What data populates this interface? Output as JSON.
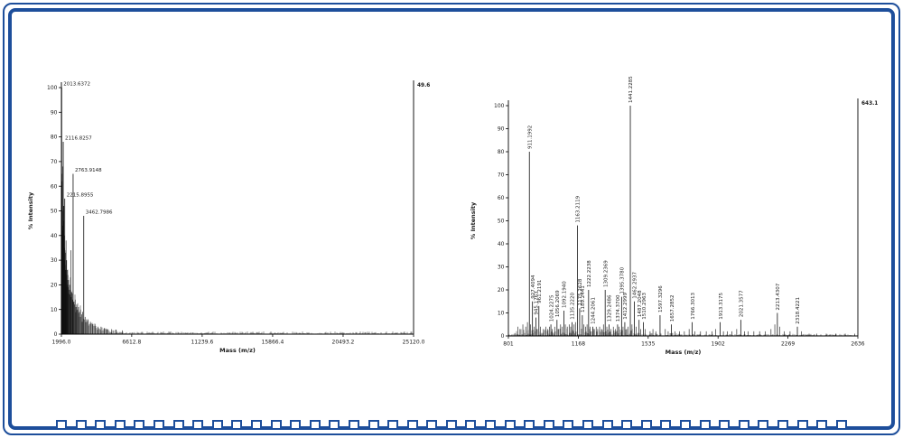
{
  "colors": {
    "frame_blue": "#1d4e9b",
    "trace": "#111111"
  },
  "chart_data": [
    {
      "type": "line",
      "kind": "mass-spectrum",
      "title": "",
      "xlabel": "Mass (m/z)",
      "ylabel": "% Intensity",
      "xlim": [
        1996.0,
        25120.0
      ],
      "ylim": [
        0,
        100
      ],
      "xticks": [
        "1996.0",
        "6612.8",
        "11239.6",
        "15866.4",
        "20493.2",
        "25120.0"
      ],
      "yticks": [
        0,
        10,
        20,
        30,
        40,
        50,
        60,
        70,
        80,
        90,
        100
      ],
      "max_label": "49.6",
      "grid": false,
      "legend": false,
      "peak_label_orientation": "horizontal",
      "labeled_peaks": [
        {
          "mz": 2013.6372,
          "intensity": 100,
          "label": "2013.6372"
        },
        {
          "mz": 2116.8257,
          "intensity": 78,
          "label": "2116.8257"
        },
        {
          "mz": 2215.8955,
          "intensity": 55,
          "label": "2215.8955"
        },
        {
          "mz": 2763.9148,
          "intensity": 65,
          "label": "2763.9148"
        },
        {
          "mz": 3462.7986,
          "intensity": 48,
          "label": "3462.7986"
        }
      ],
      "unlabeled_peaks": [
        [
          2004,
          55
        ],
        [
          2008,
          72
        ],
        [
          2025,
          65
        ],
        [
          2030,
          58
        ],
        [
          2040,
          62
        ],
        [
          2055,
          50
        ],
        [
          2070,
          44
        ],
        [
          2085,
          68
        ],
        [
          2100,
          42
        ],
        [
          2130,
          46
        ],
        [
          2145,
          38
        ],
        [
          2160,
          52
        ],
        [
          2175,
          35
        ],
        [
          2190,
          30
        ],
        [
          2205,
          40
        ],
        [
          2230,
          34
        ],
        [
          2245,
          28
        ],
        [
          2260,
          33
        ],
        [
          2280,
          26
        ],
        [
          2300,
          38
        ],
        [
          2320,
          24
        ],
        [
          2340,
          30
        ],
        [
          2360,
          22
        ],
        [
          2380,
          26
        ],
        [
          2400,
          20
        ],
        [
          2420,
          24
        ],
        [
          2440,
          19
        ],
        [
          2470,
          22
        ],
        [
          2500,
          18
        ],
        [
          2530,
          20
        ],
        [
          2560,
          16
        ],
        [
          2590,
          18
        ],
        [
          2615,
          34
        ],
        [
          2640,
          15
        ],
        [
          2680,
          17
        ],
        [
          2720,
          14
        ],
        [
          2800,
          13
        ],
        [
          2850,
          12
        ],
        [
          2900,
          14
        ],
        [
          2950,
          11
        ],
        [
          3000,
          12
        ],
        [
          3060,
          10
        ],
        [
          3120,
          11
        ],
        [
          3180,
          9
        ],
        [
          3250,
          10
        ],
        [
          3320,
          8
        ],
        [
          3400,
          9
        ],
        [
          3550,
          7
        ],
        [
          3650,
          6
        ],
        [
          3750,
          6
        ],
        [
          3900,
          5
        ],
        [
          4050,
          4
        ],
        [
          4200,
          4
        ],
        [
          4400,
          3
        ],
        [
          4600,
          3
        ],
        [
          4800,
          2.5
        ],
        [
          5000,
          2
        ],
        [
          5300,
          2
        ],
        [
          5600,
          1.8
        ],
        [
          6000,
          1.5
        ]
      ],
      "envelope": {
        "from": 2050,
        "x0": 2350,
        "a": 26,
        "tau": 800
      },
      "noise_segments": [
        {
          "from": 1996,
          "to": 2600,
          "amp": 5
        },
        {
          "from": 2600,
          "to": 3600,
          "amp": 3.5
        },
        {
          "from": 3600,
          "to": 4500,
          "amp": 2.2
        },
        {
          "from": 4500,
          "to": 6000,
          "amp": 1.6
        },
        {
          "from": 6000,
          "to": 25120,
          "amp": 1.1
        }
      ]
    },
    {
      "type": "line",
      "kind": "mass-spectrum",
      "title": "",
      "xlabel": "Mass (m/z)",
      "ylabel": "% Intensity",
      "xlim": [
        801,
        2636
      ],
      "ylim": [
        0,
        100
      ],
      "xticks": [
        "801",
        "1168",
        "1535",
        "1902",
        "2269",
        "2636"
      ],
      "yticks": [
        0,
        10,
        20,
        30,
        40,
        50,
        60,
        70,
        80,
        90,
        100
      ],
      "max_label": "643.1",
      "grid": false,
      "legend": false,
      "peak_label_orientation": "vertical",
      "labeled_peaks": [
        {
          "mz": 911.1992,
          "intensity": 80,
          "label": "911.1992"
        },
        {
          "mz": 927.4094,
          "intensity": 15,
          "label": "927.4094"
        },
        {
          "mz": 945.1763,
          "intensity": 8,
          "label": "945.1763"
        },
        {
          "mz": 961.2191,
          "intensity": 13,
          "label": "961.2191"
        },
        {
          "mz": 1024.2275,
          "intensity": 5,
          "label": "1024.2275"
        },
        {
          "mz": 1056.2069,
          "intensity": 7,
          "label": "1056.2069"
        },
        {
          "mz": 1092.194,
          "intensity": 11,
          "label": "1092.1940"
        },
        {
          "mz": 1135.222,
          "intensity": 6,
          "label": "1135.2220"
        },
        {
          "mz": 1163.2119,
          "intensity": 48,
          "label": "1163.2119"
        },
        {
          "mz": 1175.2628,
          "intensity": 12,
          "label": "1175.2628"
        },
        {
          "mz": 1189.2441,
          "intensity": 9,
          "label": "1189.2441"
        },
        {
          "mz": 1222.2238,
          "intensity": 20,
          "label": "1222.2238"
        },
        {
          "mz": 1244.2061,
          "intensity": 4,
          "label": "1244.2061"
        },
        {
          "mz": 1309.2369,
          "intensity": 20,
          "label": "1309.2369"
        },
        {
          "mz": 1329.2486,
          "intensity": 5,
          "label": "1329.2486"
        },
        {
          "mz": 1374.37,
          "intensity": 5,
          "label": "1374.3700"
        },
        {
          "mz": 1395.378,
          "intensity": 17,
          "label": "1395.3780"
        },
        {
          "mz": 1412.2999,
          "intensity": 6,
          "label": "1412.2999"
        },
        {
          "mz": 1441.2285,
          "intensity": 100,
          "label": "1441.2285"
        },
        {
          "mz": 1462.2937,
          "intensity": 15,
          "label": "1462.2937"
        },
        {
          "mz": 1487.2048,
          "intensity": 7,
          "label": "1487.2048"
        },
        {
          "mz": 1510.2963,
          "intensity": 6,
          "label": "1510.2963"
        },
        {
          "mz": 1597.3296,
          "intensity": 9,
          "label": "1597.3296"
        },
        {
          "mz": 1657.2852,
          "intensity": 5,
          "label": "1657.2852"
        },
        {
          "mz": 1766.3013,
          "intensity": 6,
          "label": "1766.3013"
        },
        {
          "mz": 1913.3175,
          "intensity": 6,
          "label": "1913.3175"
        },
        {
          "mz": 2021.3577,
          "intensity": 7,
          "label": "2021.3577"
        },
        {
          "mz": 2213.4307,
          "intensity": 10,
          "label": "2213.4307"
        },
        {
          "mz": 2318.4221,
          "intensity": 4,
          "label": "2318.4221"
        }
      ],
      "unlabeled_peaks": [
        [
          851,
          4
        ],
        [
          862,
          3
        ],
        [
          877,
          5
        ],
        [
          892,
          4
        ],
        [
          901,
          6
        ],
        [
          918,
          5
        ],
        [
          936,
          4
        ],
        [
          953,
          3
        ],
        [
          970,
          4
        ],
        [
          985,
          3
        ],
        [
          997,
          4
        ],
        [
          1008,
          3
        ],
        [
          1016,
          4
        ],
        [
          1032,
          3
        ],
        [
          1044,
          4
        ],
        [
          1064,
          3
        ],
        [
          1075,
          5
        ],
        [
          1083,
          4
        ],
        [
          1100,
          5
        ],
        [
          1110,
          4
        ],
        [
          1120,
          5
        ],
        [
          1128,
          4
        ],
        [
          1146,
          5
        ],
        [
          1153,
          6
        ],
        [
          1198,
          5
        ],
        [
          1206,
          4
        ],
        [
          1214,
          5
        ],
        [
          1230,
          4
        ],
        [
          1252,
          3
        ],
        [
          1262,
          4
        ],
        [
          1270,
          3
        ],
        [
          1280,
          4
        ],
        [
          1290,
          3
        ],
        [
          1300,
          5
        ],
        [
          1318,
          4
        ],
        [
          1340,
          3
        ],
        [
          1352,
          4
        ],
        [
          1362,
          3
        ],
        [
          1382,
          4
        ],
        [
          1403,
          4
        ],
        [
          1422,
          3
        ],
        [
          1430,
          4
        ],
        [
          1450,
          5
        ],
        [
          1472,
          4
        ],
        [
          1495,
          3
        ],
        [
          1520,
          3
        ],
        [
          1545,
          2
        ],
        [
          1560,
          3
        ],
        [
          1575,
          2
        ],
        [
          1625,
          3
        ],
        [
          1640,
          2
        ],
        [
          1675,
          2
        ],
        [
          1700,
          2
        ],
        [
          1725,
          2
        ],
        [
          1750,
          3
        ],
        [
          1780,
          2
        ],
        [
          1810,
          2
        ],
        [
          1840,
          2
        ],
        [
          1870,
          2
        ],
        [
          1890,
          3
        ],
        [
          1930,
          2
        ],
        [
          1950,
          2
        ],
        [
          1975,
          2
        ],
        [
          2000,
          3
        ],
        [
          2040,
          2
        ],
        [
          2060,
          2
        ],
        [
          2090,
          2
        ],
        [
          2120,
          2
        ],
        [
          2150,
          2
        ],
        [
          2180,
          3
        ],
        [
          2200,
          5
        ],
        [
          2225,
          4
        ],
        [
          2250,
          2
        ],
        [
          2280,
          2
        ],
        [
          2340,
          2
        ],
        [
          2380,
          1
        ],
        [
          2420,
          1
        ],
        [
          2470,
          1
        ],
        [
          2520,
          1
        ],
        [
          2570,
          1
        ],
        [
          2620,
          1
        ]
      ],
      "envelope": null,
      "noise_segments": [
        {
          "from": 801,
          "to": 830,
          "amp": 1
        },
        {
          "from": 830,
          "to": 1460,
          "amp": 3.2
        },
        {
          "from": 1460,
          "to": 1700,
          "amp": 1.4
        },
        {
          "from": 1700,
          "to": 2636,
          "amp": 0.9
        }
      ]
    }
  ]
}
